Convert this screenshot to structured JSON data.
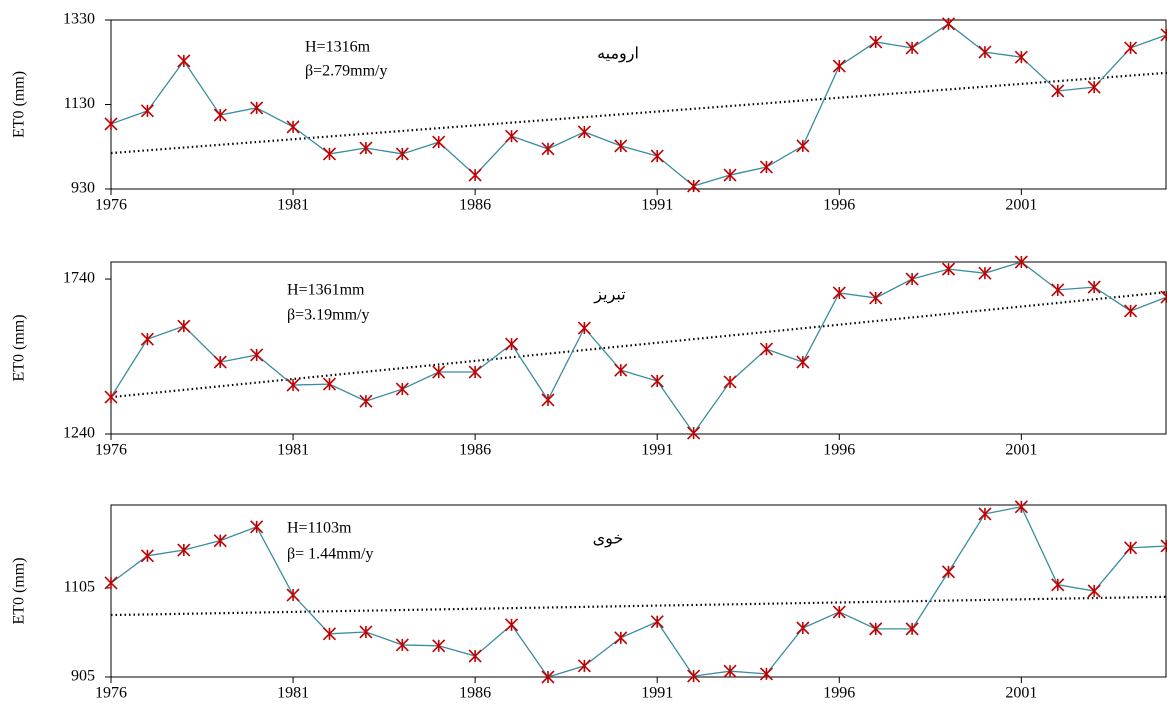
{
  "chart_data": [
    {
      "type": "line",
      "ylabel": "ET0 (mm)",
      "notes": [
        "H=1316m",
        "β=2.79mm/y"
      ],
      "station": "ارومیه",
      "x": [
        1976,
        1977,
        1978,
        1979,
        1980,
        1981,
        1982,
        1983,
        1984,
        1985,
        1986,
        1987,
        1988,
        1989,
        1990,
        1991,
        1992,
        1993,
        1994,
        1995,
        1996,
        1997,
        1998,
        1999,
        2000,
        2001,
        2002,
        2003,
        2004,
        2005
      ],
      "values": [
        1084,
        1115,
        1233,
        1105,
        1122,
        1077,
        1013,
        1027,
        1013,
        1041,
        963,
        1055,
        1025,
        1065,
        1032,
        1008,
        937,
        963,
        982,
        1032,
        1221,
        1278,
        1264,
        1321,
        1254,
        1242,
        1162,
        1171,
        1264,
        1295
      ],
      "trend": [
        1015,
        1205
      ],
      "color": "#3a8ca0",
      "marker_color": "#c00000",
      "xlim": [
        1976,
        2005
      ],
      "xticks": [
        1976,
        1981,
        1986,
        1991,
        1996,
        2001
      ],
      "ylim": [
        930,
        1330
      ],
      "yticks": [
        930,
        1130,
        1330
      ]
    },
    {
      "type": "line",
      "ylabel": "ET0 (mm)",
      "notes": [
        "H=1361mm",
        "β=3.19mm/y"
      ],
      "station": "تبریز",
      "x": [
        1976,
        1977,
        1978,
        1979,
        1980,
        1981,
        1982,
        1983,
        1984,
        1985,
        1986,
        1987,
        1988,
        1989,
        1990,
        1991,
        1992,
        1993,
        1994,
        1995,
        1996,
        1997,
        1998,
        1999,
        2000,
        2001,
        2002,
        2003,
        2004,
        2005
      ],
      "values": [
        1359,
        1546,
        1588,
        1472,
        1495,
        1398,
        1401,
        1346,
        1385,
        1440,
        1440,
        1530,
        1350,
        1582,
        1446,
        1411,
        1243,
        1408,
        1514,
        1472,
        1695,
        1679,
        1740,
        1772,
        1759,
        1795,
        1705,
        1714,
        1637,
        1682
      ],
      "trend": [
        1359,
        1698
      ],
      "color": "#3a8ca0",
      "marker_color": "#c00000",
      "xlim": [
        1976,
        2005
      ],
      "xticks": [
        1976,
        1981,
        1986,
        1991,
        1996,
        2001
      ],
      "ylim": [
        1240,
        1795
      ],
      "yticks": [
        1240,
        1740
      ]
    },
    {
      "type": "line",
      "ylabel": "ET0 (mm)",
      "notes": [
        "H=1103m",
        "β= 1.44mm/y"
      ],
      "station": "خوی",
      "x": [
        1976,
        1977,
        1978,
        1979,
        1980,
        1981,
        1982,
        1983,
        1984,
        1985,
        1986,
        1987,
        1988,
        1989,
        1990,
        1991,
        1992,
        1993,
        1994,
        1995,
        1996,
        1997,
        1998,
        1999,
        2000,
        2001,
        2002,
        2003,
        2004,
        2005
      ],
      "values": [
        1116,
        1177,
        1190,
        1211,
        1242,
        1089,
        1002,
        1006,
        977,
        975,
        952,
        1022,
        905,
        930,
        993,
        1029,
        907,
        918,
        912,
        1015,
        1051,
        1013,
        1013,
        1141,
        1271,
        1287,
        1112,
        1098,
        1195,
        1199
      ],
      "trend": [
        1044,
        1085
      ],
      "color": "#3a8ca0",
      "marker_color": "#c00000",
      "xlim": [
        1976,
        2005
      ],
      "xticks": [
        1976,
        1981,
        1986,
        1991,
        1996,
        2001
      ],
      "ylim": [
        905,
        1291
      ],
      "yticks": [
        905,
        1105
      ]
    }
  ]
}
